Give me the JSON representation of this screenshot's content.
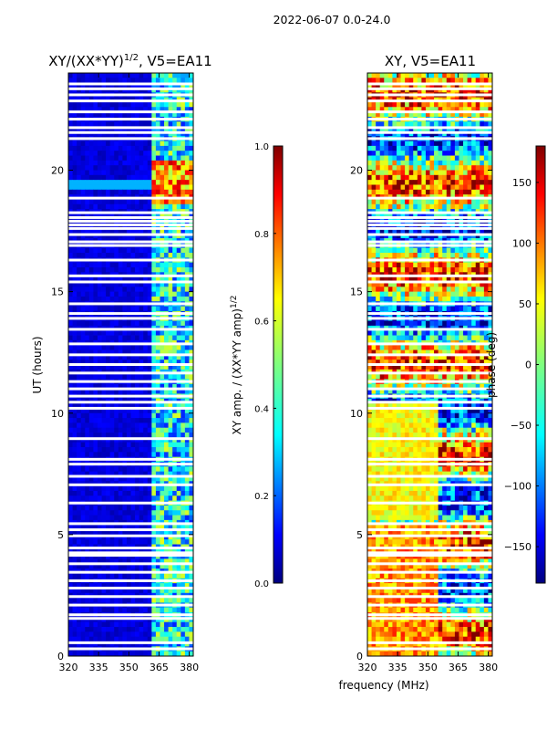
{
  "chart_data": [
    {
      "type": "heatmap",
      "figure_title": "2022-06-07 0.0-24.0",
      "title_main": "XY/(XX*YY)",
      "title_power": "1/2",
      "title_suffix": ", V5=EA11",
      "xlabel": "frequency (MHz)",
      "ylabel": "UT (hours)",
      "xlim": [
        320,
        382
      ],
      "ylim": [
        0,
        24
      ],
      "x_ticks": [
        320,
        335,
        350,
        365,
        380
      ],
      "y_ticks": [
        0,
        5,
        10,
        15,
        20
      ],
      "colorbar": {
        "label_main": "XY amp. / (XX*YY amp)",
        "label_power": "1/2",
        "range": [
          0.0,
          1.0
        ],
        "ticks": [
          "0.0",
          "0.2",
          "0.4",
          "0.6",
          "0.8",
          "1.0"
        ],
        "colormap": "jet"
      },
      "description_values": {
        "background_level": 0.05,
        "high_band_mhz": [
          362,
          382
        ],
        "high_band_level_range": [
          0.3,
          0.95
        ]
      }
    },
    {
      "type": "heatmap",
      "title": "XY, V5=EA11",
      "xlabel": "frequency (MHz)",
      "ylabel": "UT (hours)",
      "xlim": [
        320,
        382
      ],
      "ylim": [
        0,
        24
      ],
      "x_ticks": [
        320,
        335,
        350,
        365,
        380
      ],
      "y_ticks": [
        0,
        5,
        10,
        15,
        20
      ],
      "colorbar": {
        "label": "phase (deg)",
        "range": [
          -180,
          180
        ],
        "ticks": [
          "−150",
          "−100",
          "−50",
          "0",
          "50",
          "100",
          "150"
        ],
        "tick_values": [
          -150,
          -100,
          -50,
          0,
          50,
          100,
          150
        ],
        "colormap": "jet"
      }
    }
  ],
  "colors": {
    "jet_stops": [
      "#00007f",
      "#0000ff",
      "#007fff",
      "#00ffff",
      "#7fff7f",
      "#ffff00",
      "#ff7f00",
      "#ff0000",
      "#7f0000"
    ]
  },
  "flagged_rows_hours": [
    0.3,
    0.55,
    1.55,
    1.7,
    2.1,
    2.45,
    2.8,
    3.1,
    3.45,
    3.8,
    4.15,
    4.25,
    4.45,
    4.95,
    5.2,
    5.45,
    6.3,
    7.05,
    7.4,
    7.9,
    8.1,
    8.95,
    10.2,
    10.45,
    10.7,
    11.0,
    11.3,
    11.65,
    12.0,
    12.4,
    12.85,
    13.45,
    13.9,
    14.1,
    14.5,
    15.4,
    15.65,
    16.3,
    16.9,
    17.05,
    17.35,
    17.6,
    17.75,
    17.9,
    18.05,
    18.25,
    18.85,
    21.3,
    21.55,
    21.75,
    22.1,
    22.4,
    22.85,
    23.1,
    23.35,
    23.55
  ]
}
